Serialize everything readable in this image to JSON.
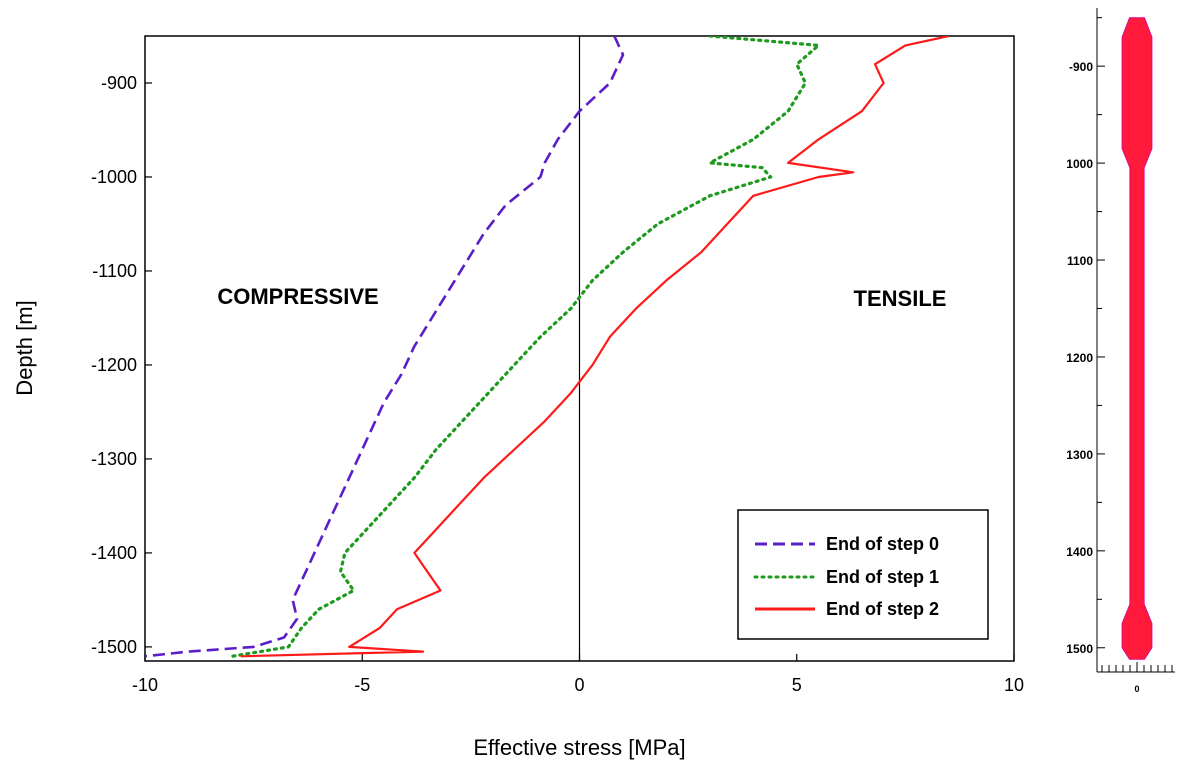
{
  "chart_data": [
    {
      "type": "line",
      "xlabel": "Effective stress [MPa]",
      "ylabel": "Depth [m]",
      "xlim": [
        -10,
        10
      ],
      "ylim": [
        -1515,
        -850
      ],
      "xticks": [
        -10,
        -5,
        0,
        5,
        10
      ],
      "yticks": [
        -900,
        -1000,
        -1100,
        -1200,
        -1300,
        -1400,
        -1500
      ],
      "grid": false,
      "legend_position": "bottom-right",
      "annotations": [
        {
          "text": "COMPRESSIVE",
          "x": -6.4,
          "y": -1122
        },
        {
          "text": "TENSILE",
          "x": 7.4,
          "y": -1124
        }
      ],
      "series": [
        {
          "name": "End of step 0",
          "color": "#5a1fc8",
          "style": "dashed",
          "y": [
            -850,
            -870,
            -900,
            -930,
            -960,
            -985,
            -1000,
            -1030,
            -1060,
            -1090,
            -1120,
            -1150,
            -1180,
            -1210,
            -1240,
            -1270,
            -1300,
            -1330,
            -1360,
            -1390,
            -1420,
            -1450,
            -1470,
            -1490,
            -1500,
            -1505,
            -1510
          ],
          "x": [
            0.8,
            1.0,
            0.7,
            0.0,
            -0.5,
            -0.8,
            -0.9,
            -1.7,
            -2.2,
            -2.6,
            -3.0,
            -3.4,
            -3.8,
            -4.1,
            -4.5,
            -4.8,
            -5.1,
            -5.4,
            -5.7,
            -6.0,
            -6.3,
            -6.6,
            -6.5,
            -6.8,
            -7.5,
            -9.0,
            -10.0
          ]
        },
        {
          "name": "End of step 1",
          "color": "#1e9a1e",
          "style": "dotted",
          "y": [
            -850,
            -860,
            -880,
            -900,
            -930,
            -960,
            -985,
            -990,
            -1000,
            -1020,
            -1050,
            -1080,
            -1110,
            -1140,
            -1170,
            -1200,
            -1230,
            -1260,
            -1290,
            -1320,
            -1350,
            -1380,
            -1400,
            -1420,
            -1440,
            -1460,
            -1480,
            -1500,
            -1510
          ],
          "x": [
            3.0,
            5.5,
            5.0,
            5.2,
            4.8,
            4.0,
            3.0,
            4.2,
            4.4,
            3.0,
            1.8,
            1.0,
            0.3,
            -0.2,
            -0.9,
            -1.5,
            -2.1,
            -2.7,
            -3.3,
            -3.8,
            -4.4,
            -5.0,
            -5.4,
            -5.5,
            -5.2,
            -6.0,
            -6.4,
            -6.7,
            -8.0
          ]
        },
        {
          "name": "End of step 2",
          "color": "#ff1a1a",
          "style": "solid",
          "y": [
            -850,
            -860,
            -880,
            -900,
            -930,
            -960,
            -985,
            -995,
            -1000,
            -1020,
            -1050,
            -1080,
            -1110,
            -1140,
            -1170,
            -1200,
            -1230,
            -1260,
            -1290,
            -1320,
            -1350,
            -1380,
            -1400,
            -1420,
            -1440,
            -1460,
            -1480,
            -1500,
            -1505,
            -1510
          ],
          "x": [
            8.5,
            7.5,
            6.8,
            7.0,
            6.5,
            5.5,
            4.8,
            6.3,
            5.5,
            4.0,
            3.4,
            2.8,
            2.0,
            1.3,
            0.7,
            0.3,
            -0.2,
            -0.8,
            -1.5,
            -2.2,
            -2.8,
            -3.4,
            -3.8,
            -3.5,
            -3.2,
            -4.2,
            -4.6,
            -5.3,
            -3.6,
            -7.8
          ]
        }
      ]
    },
    {
      "type": "area",
      "ylim": [
        -1525,
        -840
      ],
      "yticks": [
        -900,
        -1000,
        -1100,
        -1200,
        -1300,
        -1400,
        -1500
      ],
      "ytick_labels": [
        "-900",
        "1000",
        "1100",
        "1200",
        "1300",
        "1400",
        "1500"
      ],
      "xtick_label": "0",
      "fill_color": "#ff1a3c",
      "profile": [
        {
          "y": -850,
          "w": 0.5
        },
        {
          "y": -870,
          "w": 1.0
        },
        {
          "y": -985,
          "w": 1.0
        },
        {
          "y": -1005,
          "w": 0.48
        },
        {
          "y": -1455,
          "w": 0.48
        },
        {
          "y": -1475,
          "w": 1.0
        },
        {
          "y": -1500,
          "w": 1.0
        },
        {
          "y": -1512,
          "w": 0.5
        }
      ]
    }
  ]
}
